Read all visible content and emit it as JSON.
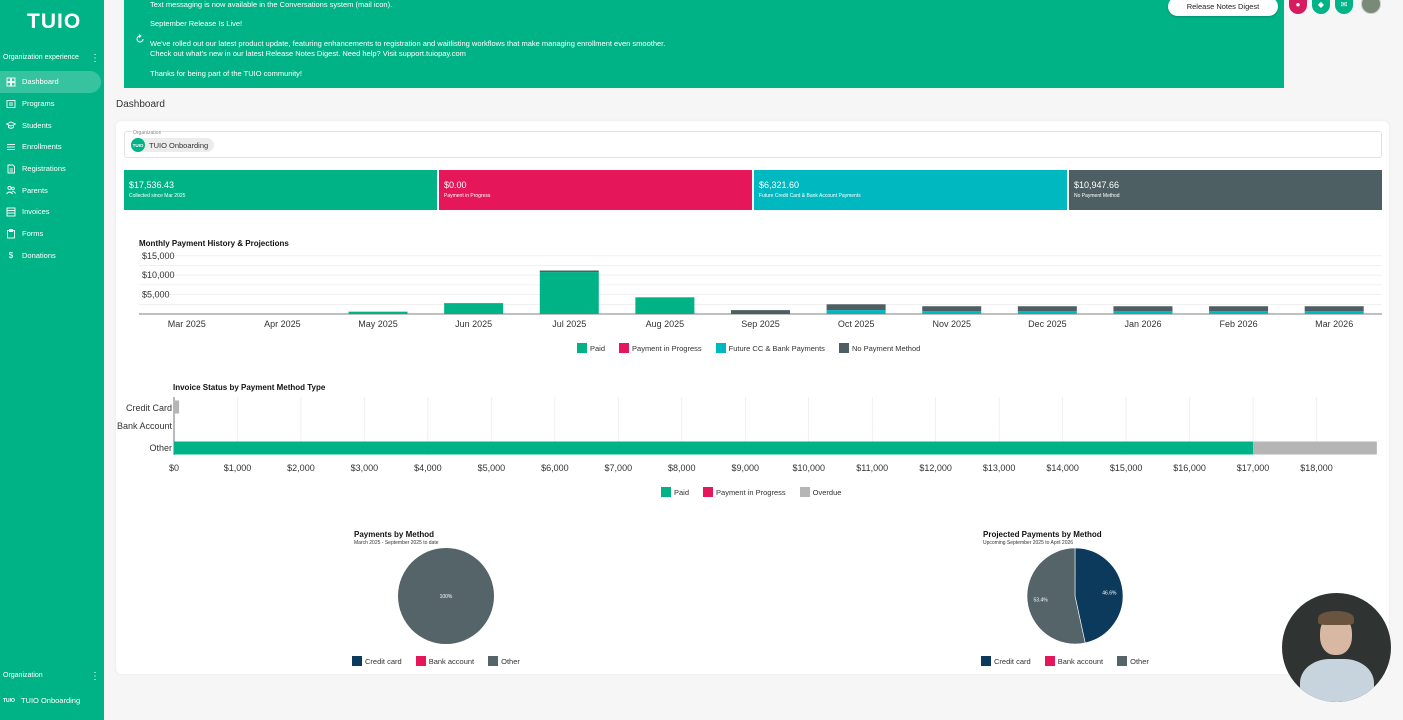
{
  "app": {
    "logo": "TUIO"
  },
  "sidebar": {
    "section_title": "Organization experience",
    "items": [
      {
        "label": "Dashboard",
        "icon": "dashboard-icon",
        "active": true
      },
      {
        "label": "Programs",
        "icon": "programs-icon"
      },
      {
        "label": "Students",
        "icon": "students-icon"
      },
      {
        "label": "Enrollments",
        "icon": "enrollments-icon"
      },
      {
        "label": "Registrations",
        "icon": "registrations-icon"
      },
      {
        "label": "Parents",
        "icon": "parents-icon"
      },
      {
        "label": "Invoices",
        "icon": "invoices-icon"
      },
      {
        "label": "Forms",
        "icon": "forms-icon"
      },
      {
        "label": "Donations",
        "icon": "donations-icon"
      }
    ],
    "org_label": "Organization",
    "org_logo": "TUIO",
    "org_name": "TUIO Onboarding"
  },
  "banner": {
    "line1": "Text messaging is now available in the Conversations system (mail icon).",
    "line2": "September Release Is Live!",
    "line3": "We've rolled out our latest product update, featuring enhancements to registration and waitlisting workflows that make managing enrollment even smoother.",
    "line4": "Check out what's new in our latest Release Notes Digest. Need help? Visit support.tuiopay.com",
    "line5": "Thanks for being part of the TUIO community!",
    "button_label": "Release Notes Digest"
  },
  "header_icons": [
    {
      "icon": "bell-icon",
      "color": "#d81b60"
    },
    {
      "icon": "shield-icon",
      "color": "#00b386"
    },
    {
      "icon": "mail-icon",
      "color": "#00b386"
    }
  ],
  "page_title": "Dashboard",
  "org_select": {
    "label": "Organization",
    "chip_logo": "TUIO",
    "value": "TUIO Onboarding"
  },
  "stats": [
    {
      "amount": "$17,536.43",
      "label": "Collected since Mar 2025",
      "color": "#00b386"
    },
    {
      "amount": "$0.00",
      "label": "Payment in Progress",
      "color": "#e5175a"
    },
    {
      "amount": "$6,321.60",
      "label": "Future Credit Card & Bank Account Payments",
      "color": "#00b8c0"
    },
    {
      "amount": "$10,947.66",
      "label": "No Payment Method",
      "color": "#4e5f63"
    }
  ],
  "colors": {
    "paid": "#00b386",
    "progress": "#e5175a",
    "future": "#00b8c0",
    "nopm": "#4e5f63",
    "overdue": "#b5b5b5",
    "credit": "#0b3a5c",
    "bank": "#e5175a",
    "other": "#556468"
  },
  "chart_data": [
    {
      "type": "bar",
      "stacked": true,
      "title": "Monthly Payment History & Projections",
      "categories": [
        "Mar 2025",
        "Apr 2025",
        "May 2025",
        "Jun 2025",
        "Jul 2025",
        "Aug 2025",
        "Sep 2025",
        "Oct 2025",
        "Nov 2025",
        "Dec 2025",
        "Jan 2026",
        "Feb 2026",
        "Mar 2026"
      ],
      "y_ticks": [
        "$5,000",
        "$10,000",
        "$15,000"
      ],
      "ylim": [
        0,
        17000
      ],
      "series": [
        {
          "name": "Paid",
          "values": [
            0,
            0,
            600,
            2800,
            10800,
            4300,
            0,
            0,
            0,
            0,
            0,
            0,
            0
          ]
        },
        {
          "name": "Payment in Progress",
          "values": [
            0,
            0,
            0,
            0,
            0,
            0,
            0,
            0,
            0,
            0,
            0,
            0,
            0
          ]
        },
        {
          "name": "Future CC & Bank Payments",
          "values": [
            0,
            0,
            0,
            0,
            0,
            0,
            0,
            1000,
            700,
            700,
            700,
            700,
            700
          ]
        },
        {
          "name": "No Payment Method",
          "values": [
            0,
            0,
            0,
            0,
            400,
            0,
            1000,
            1500,
            1300,
            1300,
            1300,
            1300,
            1300
          ]
        }
      ],
      "legend": "bottom",
      "grid": true
    },
    {
      "type": "bar",
      "orientation": "horizontal",
      "stacked": true,
      "title": "Invoice Status by Payment Method Type",
      "categories": [
        "Credit Card",
        "Bank Account",
        "Other"
      ],
      "x_ticks": [
        "$0",
        "$1,000",
        "$2,000",
        "$3,000",
        "$4,000",
        "$5,000",
        "$6,000",
        "$7,000",
        "$8,000",
        "$9,000",
        "$10,000",
        "$11,000",
        "$12,000",
        "$13,000",
        "$14,000",
        "$15,000",
        "$16,000",
        "$17,000",
        "$18,000"
      ],
      "xlim": [
        0,
        19000
      ],
      "series": [
        {
          "name": "Paid",
          "values": [
            0,
            0,
            17000
          ]
        },
        {
          "name": "Payment in Progress",
          "values": [
            0,
            0,
            0
          ]
        },
        {
          "name": "Overdue",
          "values": [
            80,
            0,
            1950
          ]
        }
      ],
      "legend": "bottom",
      "grid": true
    },
    {
      "type": "pie",
      "title": "Payments by Method",
      "subtitle": "March 2025 - September 2025 to date",
      "labels": [
        "Credit card",
        "Bank account",
        "Other"
      ],
      "values": [
        0,
        0,
        100
      ],
      "slice_labels": [
        "",
        "",
        "100%"
      ],
      "legend": "bottom"
    },
    {
      "type": "pie",
      "title": "Projected Payments by Method",
      "subtitle": "Upcoming September 2025 to April 2026",
      "labels": [
        "Credit card",
        "Bank account",
        "Other"
      ],
      "values": [
        46.6,
        0,
        53.4
      ],
      "slice_labels": [
        "46.6%",
        "",
        "53.4%"
      ],
      "legend": "bottom"
    }
  ]
}
